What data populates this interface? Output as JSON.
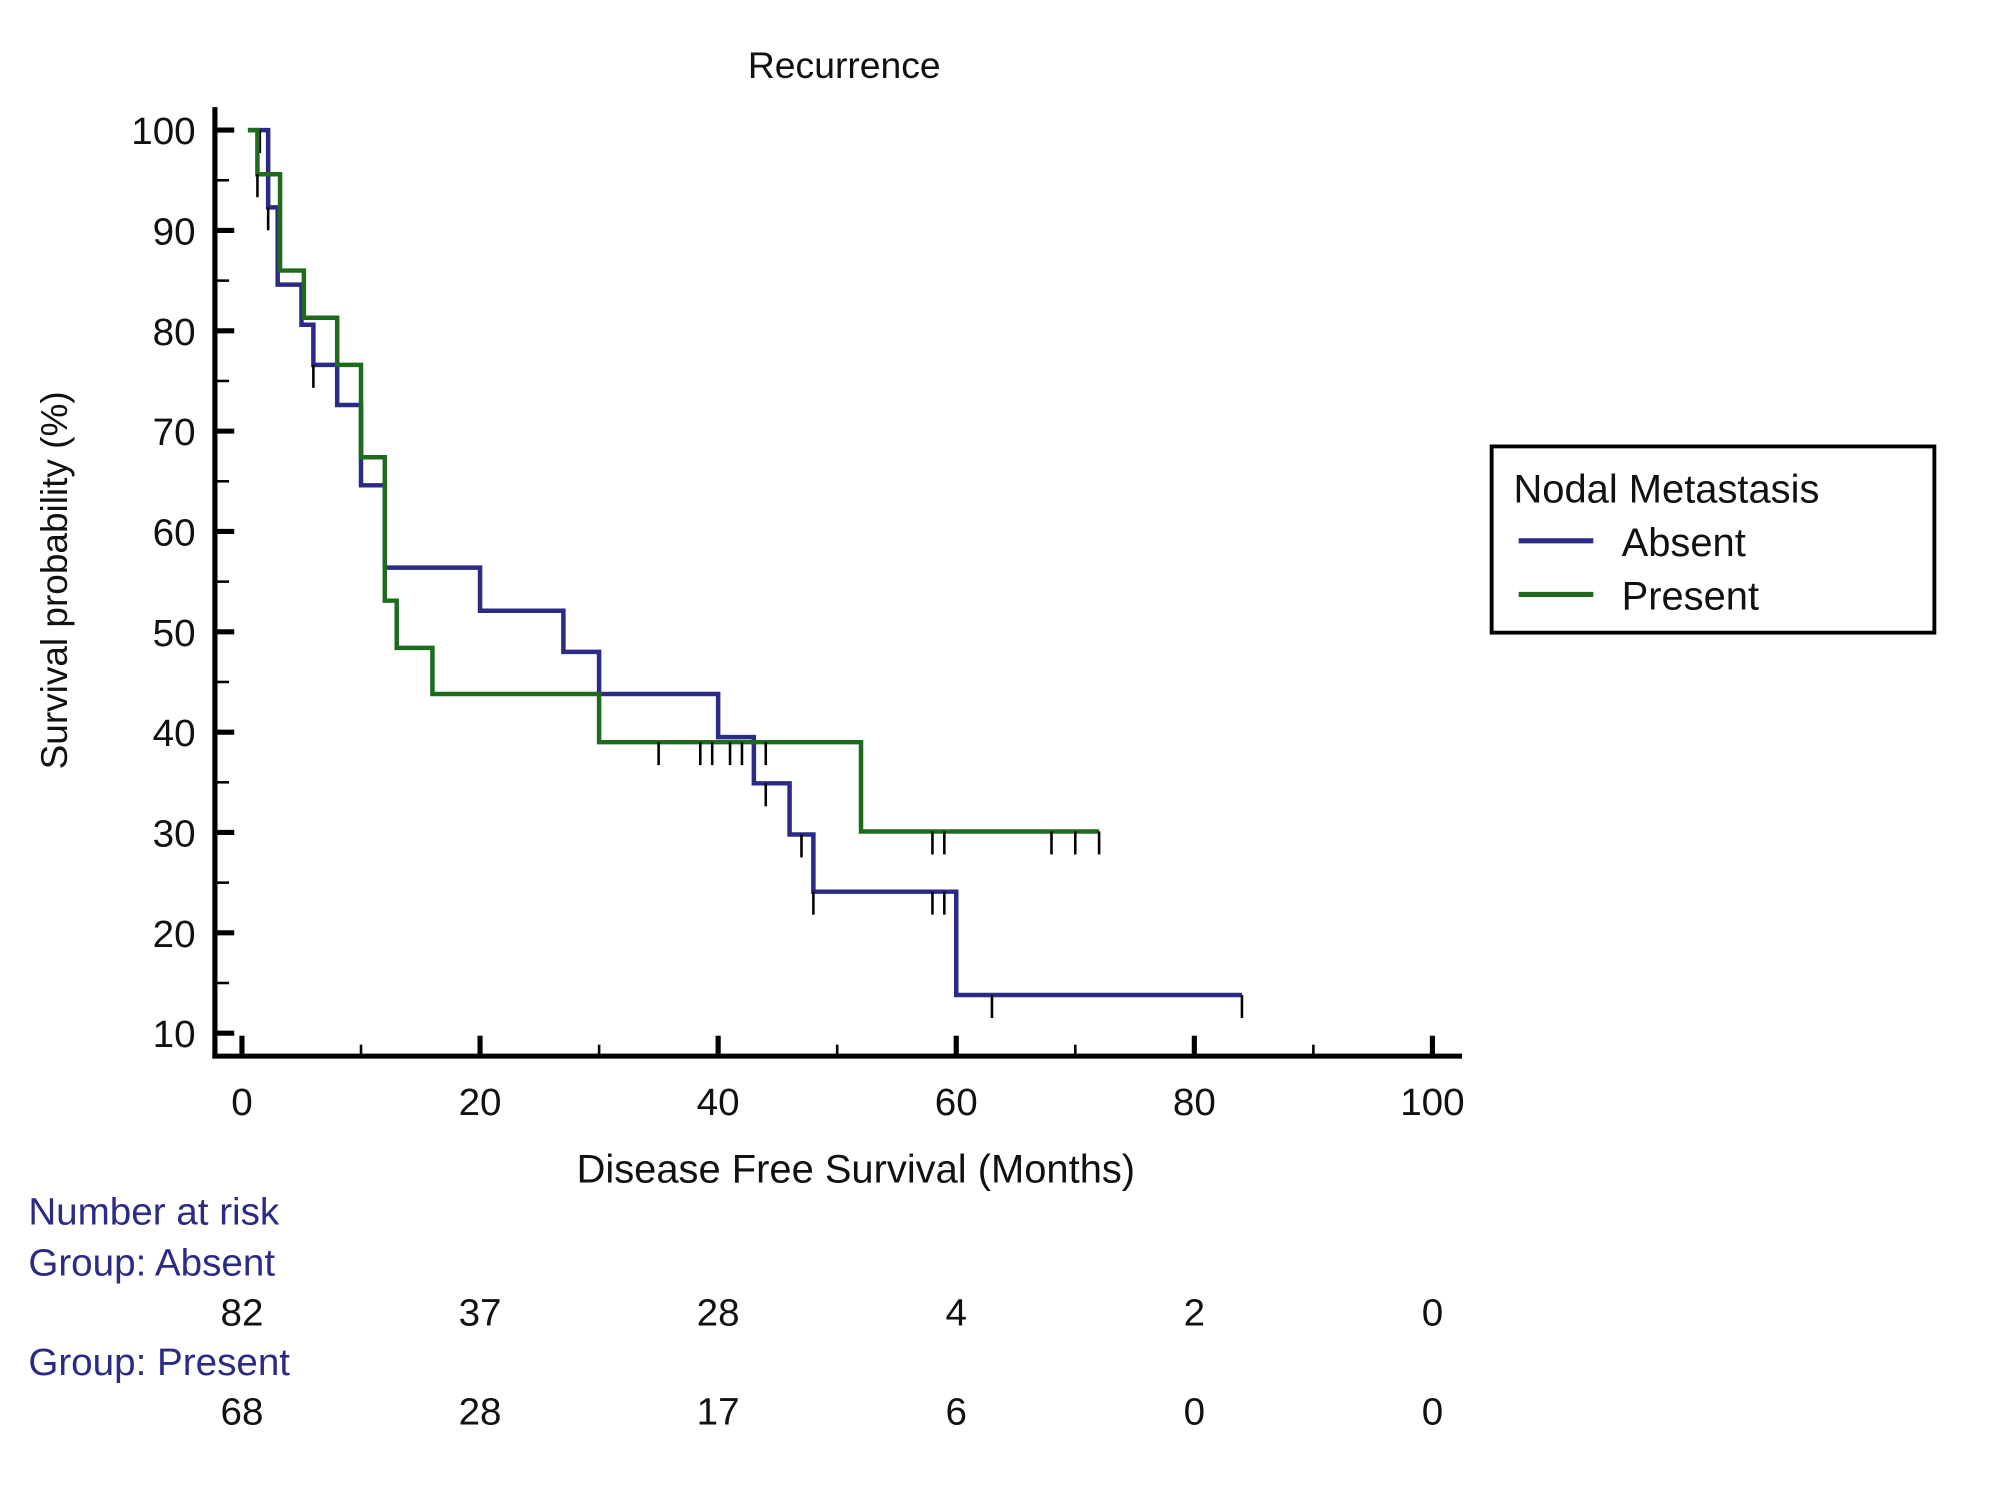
{
  "chart_data": {
    "type": "line",
    "subtype": "kaplan-meier step",
    "title": "Recurrence",
    "xlabel": "Disease Free Survival (Months)",
    "ylabel": "Survival probability (%)",
    "xlim": [
      0,
      100
    ],
    "ylim": [
      10,
      100
    ],
    "xticks": [
      "0",
      "20",
      "40",
      "60",
      "80",
      "100"
    ],
    "yticks": [
      "10",
      "20",
      "30",
      "40",
      "50",
      "60",
      "70",
      "80",
      "90",
      "100"
    ],
    "grid": false,
    "legend": {
      "title": "Nodal Metastasis",
      "placement": "right",
      "entries": [
        "Absent",
        "Present"
      ]
    },
    "series": [
      {
        "name": "Absent",
        "color": "#2b2b86",
        "steps": [
          [
            0.5,
            100
          ],
          [
            2.2,
            92.3
          ],
          [
            3,
            84.6
          ],
          [
            5,
            80.6
          ],
          [
            6,
            76.6
          ],
          [
            8,
            72.6
          ],
          [
            10,
            64.6
          ],
          [
            12,
            56.4
          ],
          [
            20,
            52.1
          ],
          [
            27,
            48
          ],
          [
            30,
            43.8
          ],
          [
            40,
            39.5
          ],
          [
            43,
            34.9
          ],
          [
            46,
            29.8
          ],
          [
            48,
            24.1
          ],
          [
            60,
            13.8
          ],
          [
            84,
            13.8
          ]
        ],
        "censored": [
          1.5,
          2.2,
          6,
          44,
          47,
          48,
          58,
          59,
          63,
          84
        ]
      },
      {
        "name": "Present",
        "color": "#1e6b1e",
        "steps": [
          [
            0.5,
            100
          ],
          [
            1.3,
            95.6
          ],
          [
            3.2,
            86
          ],
          [
            5.2,
            81.3
          ],
          [
            8,
            76.6
          ],
          [
            10,
            67.4
          ],
          [
            12,
            53.1
          ],
          [
            13,
            48.4
          ],
          [
            16,
            43.8
          ],
          [
            30,
            39
          ],
          [
            52,
            30.1
          ],
          [
            72,
            30.1
          ]
        ],
        "censored": [
          1.3,
          35,
          38.5,
          39.5,
          41,
          42,
          44,
          58,
          59,
          68,
          70,
          72
        ]
      }
    ],
    "number_at_risk": {
      "title": "Number at risk",
      "groups": [
        {
          "label": "Group: Absent",
          "values": [
            "82",
            "37",
            "28",
            "4",
            "2",
            "0"
          ]
        },
        {
          "label": "Group: Present",
          "values": [
            "68",
            "28",
            "17",
            "6",
            "0",
            "0"
          ]
        }
      ]
    }
  }
}
